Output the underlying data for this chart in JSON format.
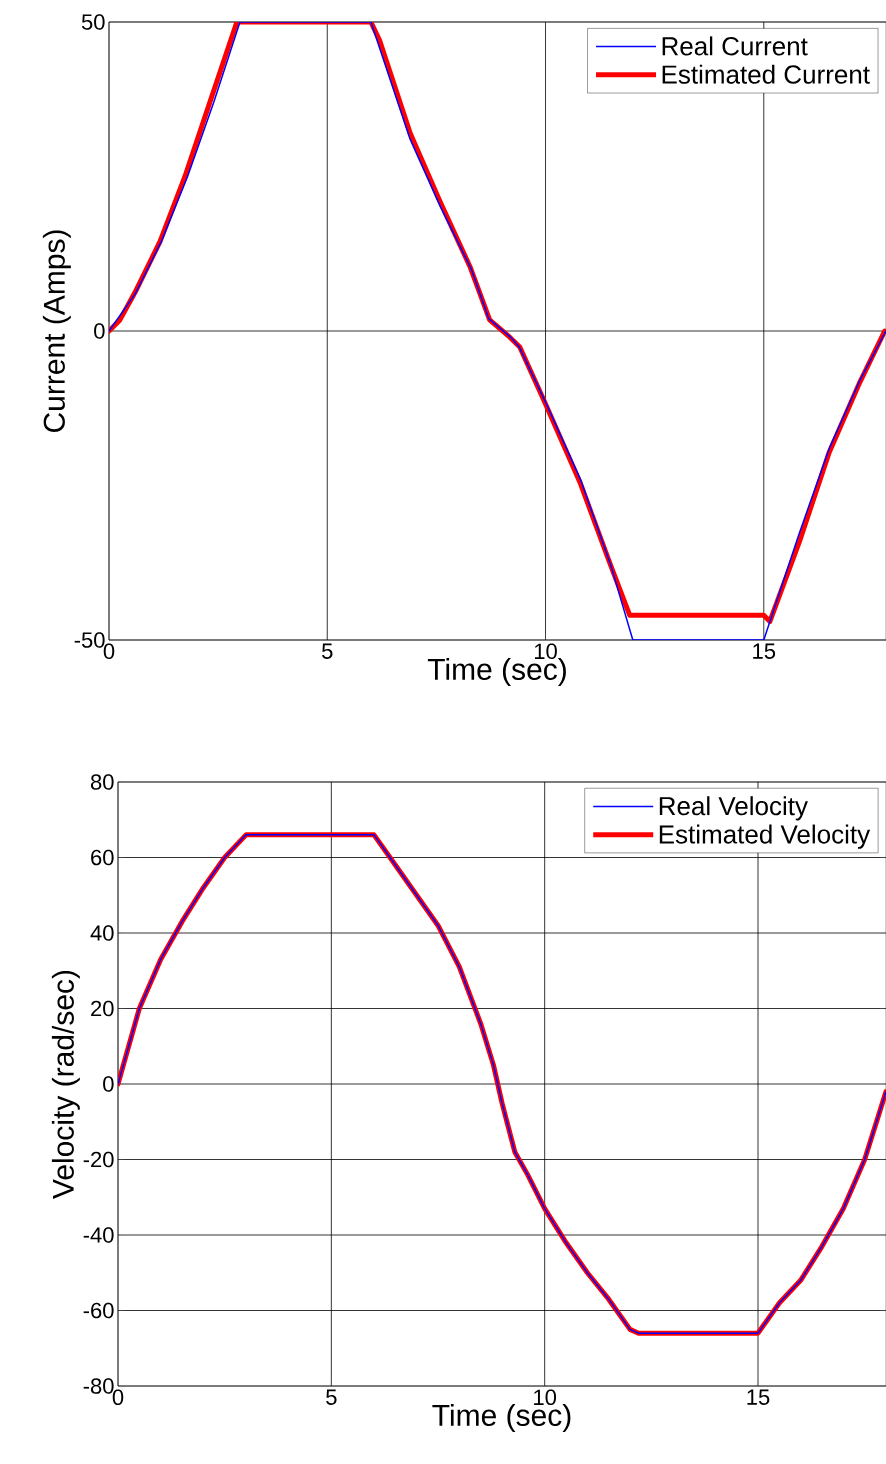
{
  "chart_data": [
    {
      "type": "line",
      "xlabel": "Time (sec)",
      "ylabel": "Current (Amps)",
      "xlim": [
        0,
        17.8
      ],
      "ylim": [
        -50,
        50
      ],
      "xticks": [
        0,
        5,
        10,
        15
      ],
      "yticks": [
        -50,
        0,
        50
      ],
      "grid": true,
      "legend": "top right",
      "series": [
        {
          "name": "Real Current",
          "color": "#0000ff",
          "x": [
            0,
            0.6,
            1.2,
            1.8,
            2.4,
            3,
            6,
            6.9,
            7.6,
            8.3,
            8.7,
            9.2,
            9.4,
            10,
            10.8,
            11.5,
            12,
            15,
            15.8,
            16.5,
            17.2,
            17.8
          ],
          "values": [
            0,
            6,
            14.5,
            25,
            37,
            50,
            50,
            31,
            20,
            10,
            2,
            -1,
            -2.6,
            -11.5,
            -24,
            -38,
            -50,
            -50,
            -33,
            -19,
            -8,
            0
          ]
        },
        {
          "name": "Estimated Current",
          "color": "#ff0000",
          "x": [
            0,
            0.25,
            0.6,
            1.17,
            1.74,
            2.31,
            2.93,
            3,
            6,
            6.2,
            6.9,
            7.58,
            8.27,
            8.72,
            9.18,
            9.41,
            9.98,
            10.79,
            11.47,
            11.93,
            12,
            15,
            15.14,
            15.82,
            16.5,
            17.2,
            17.77
          ],
          "values": [
            0,
            1.8,
            6.3,
            14.5,
            25,
            37,
            50,
            50,
            50,
            47,
            32,
            21,
            10.4,
            1.8,
            -1,
            -2.6,
            -11.5,
            -24.5,
            -37.5,
            -46,
            -46,
            -46,
            -47,
            -34,
            -19.6,
            -8.3,
            0
          ]
        }
      ]
    },
    {
      "type": "line",
      "xlabel": "Time (sec)",
      "ylabel": "Velocity (rad/sec)",
      "xlim": [
        0,
        18
      ],
      "ylim": [
        -80,
        80
      ],
      "xticks": [
        0,
        5,
        10,
        15
      ],
      "yticks": [
        -80,
        -60,
        -40,
        -20,
        0,
        20,
        40,
        60,
        80
      ],
      "grid": true,
      "legend": "top right",
      "series": [
        {
          "name": "Real Velocity",
          "color": "#0000ff",
          "x": [
            0,
            0.5,
            1,
            1.5,
            2,
            2.5,
            3,
            6,
            6.5,
            7,
            7.5,
            8,
            8.5,
            8.8,
            9,
            9.3,
            9.6,
            10,
            10.5,
            11,
            11.5,
            12,
            12.2,
            15,
            15.5,
            16,
            16.5,
            17,
            17.5,
            18
          ],
          "values": [
            0,
            20,
            33,
            43,
            52,
            60,
            66,
            66,
            58,
            50,
            42,
            31,
            16,
            5,
            -5,
            -18,
            -24,
            -33,
            -42,
            -50,
            -57,
            -65,
            -66,
            -66,
            -58,
            -52,
            -43,
            -33,
            -20,
            -2
          ]
        },
        {
          "name": "Estimated Velocity",
          "color": "#ff0000",
          "x": [
            0,
            0.5,
            1,
            1.5,
            2,
            2.5,
            3,
            6,
            6.5,
            7,
            7.5,
            8,
            8.5,
            8.8,
            9,
            9.3,
            9.6,
            10,
            10.5,
            11,
            11.5,
            12,
            12.2,
            15,
            15.5,
            16,
            16.5,
            17,
            17.5,
            18
          ],
          "values": [
            0,
            20,
            33,
            43,
            52,
            60,
            66,
            66,
            58,
            50,
            42,
            31,
            16,
            5,
            -5,
            -18,
            -24,
            -33,
            -42,
            -50,
            -57,
            -65,
            -66,
            -66,
            -58,
            -52,
            -43,
            -33,
            -20,
            -2
          ]
        }
      ]
    }
  ]
}
